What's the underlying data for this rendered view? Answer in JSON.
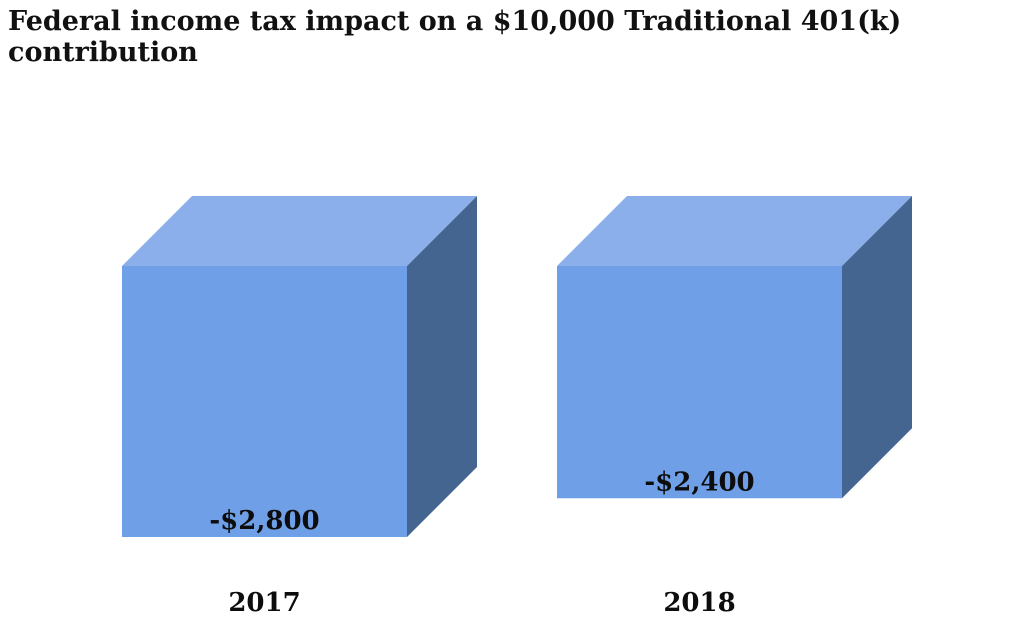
{
  "chart_data": {
    "type": "bar",
    "title": "Federal income tax impact on a $10,000 Traditional 401(k) contribution",
    "categories": [
      "2017",
      "2018"
    ],
    "values": [
      -2800,
      -2400
    ],
    "value_labels": [
      "-$2,800",
      "-$2,400"
    ],
    "xlabel": "",
    "ylabel": "",
    "ylim": [
      -2800,
      0
    ],
    "grid": false,
    "legend": "none",
    "bar_style": "3d-cube",
    "colors": {
      "front": "#6f9fe6",
      "top": "#8aafea",
      "side": "#456591"
    }
  }
}
